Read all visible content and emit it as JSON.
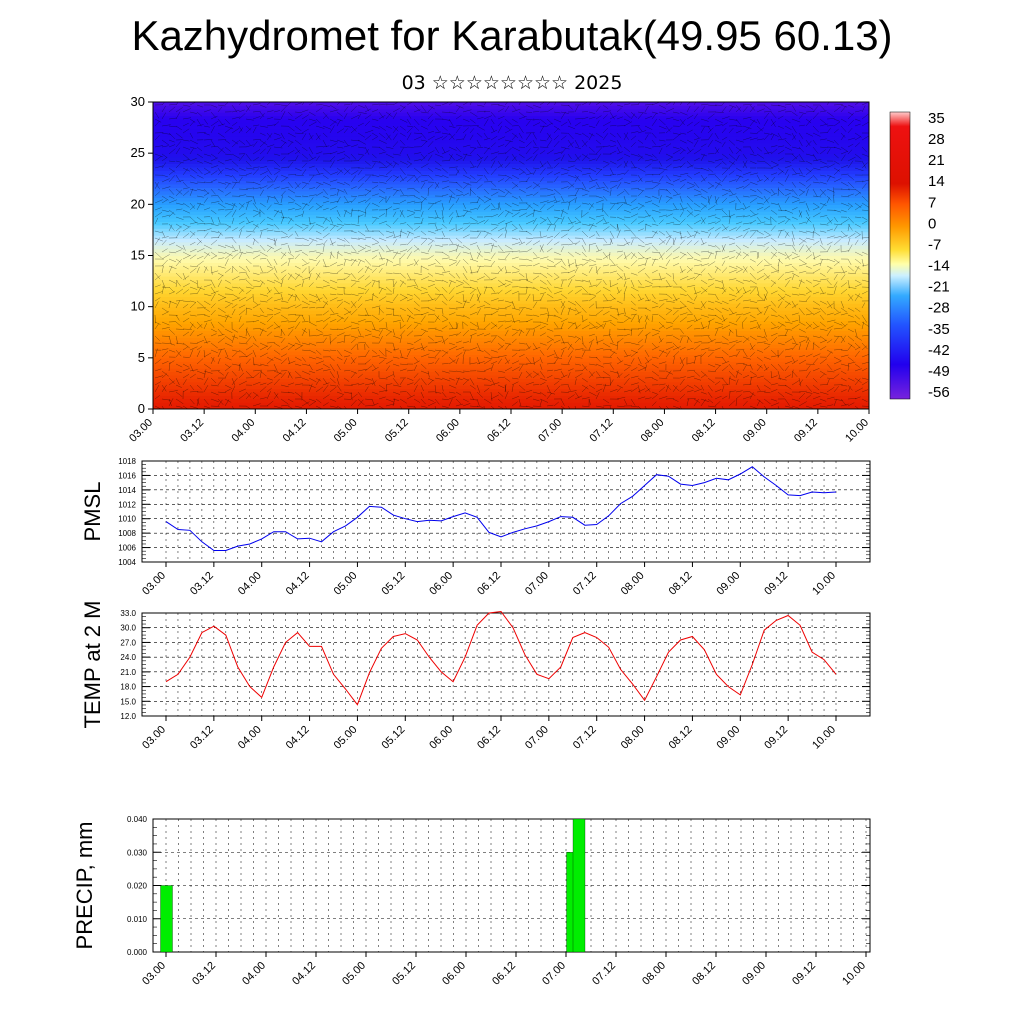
{
  "title": "Kazhydromet for Karabutak(49.95 60.13)",
  "subtitle": "03 ☆☆☆☆☆☆☆☆ 2025",
  "chart_data": [
    {
      "type": "heatmap",
      "ylim": [
        0,
        30
      ],
      "yticks": [
        "0",
        "5",
        "10",
        "15",
        "20",
        "25",
        "30"
      ],
      "xticks": [
        "03.00",
        "03.12",
        "04.00",
        "04.12",
        "05.00",
        "05.12",
        "06.00",
        "06.12",
        "07.00",
        "07.12",
        "08.00",
        "08.12",
        "09.00",
        "09.12",
        "10.00"
      ],
      "colorbar": {
        "labels": [
          "35",
          "28",
          "21",
          "14",
          "7",
          "0",
          "-7",
          "-14",
          "-21",
          "-28",
          "-35",
          "-42",
          "-49",
          "-56"
        ]
      },
      "profile": {
        "levels": [
          0,
          5,
          10,
          15,
          20,
          25,
          30
        ],
        "values": [
          22,
          14,
          4,
          -8,
          -28,
          -52,
          -58
        ]
      }
    },
    {
      "type": "line",
      "ylabel": "PMSL",
      "ylim": [
        1004,
        1018
      ],
      "yticks": [
        "1004",
        "1006",
        "1008",
        "1010",
        "1012",
        "1014",
        "1016",
        "1018"
      ],
      "xticks": [
        "03.00",
        "03.12",
        "04.00",
        "04.12",
        "05.00",
        "05.12",
        "06.00",
        "06.12",
        "07.00",
        "07.12",
        "08.00",
        "08.12",
        "09.00",
        "09.12",
        "10.00"
      ],
      "color": "#0000ee",
      "series": [
        {
          "values": [
            1009.6,
            1008.5,
            1008.4,
            1006.8,
            1005.6,
            1005.6,
            1006.2,
            1006.5,
            1007.2,
            1008.2,
            1008.2,
            1007.2,
            1007.3,
            1006.8,
            1008.2,
            1009.0,
            1010.2,
            1011.7,
            1011.6,
            1010.5,
            1010.0,
            1009.6,
            1009.8,
            1009.7,
            1010.3,
            1010.8,
            1010.2,
            1008.1,
            1007.5,
            1008.1,
            1008.6,
            1009.0,
            1009.6,
            1010.3,
            1010.2,
            1009.1,
            1009.2,
            1010.4,
            1012.1,
            1013.1,
            1014.6,
            1016.1,
            1015.9,
            1014.8,
            1014.6,
            1015.0,
            1015.6,
            1015.4,
            1016.2,
            1017.2,
            1015.8,
            1014.6,
            1013.3,
            1013.2,
            1013.7,
            1013.6,
            1013.7
          ]
        }
      ]
    },
    {
      "type": "line",
      "ylabel": "TEMP at 2 M",
      "ylim": [
        12,
        33
      ],
      "yticks": [
        "12.0",
        "15.0",
        "18.0",
        "21.0",
        "24.0",
        "27.0",
        "30.0",
        "33.0"
      ],
      "xticks": [
        "03.00",
        "03.12",
        "04.00",
        "04.12",
        "05.00",
        "05.12",
        "06.00",
        "06.12",
        "07.00",
        "07.12",
        "08.00",
        "08.12",
        "09.00",
        "09.12",
        "10.00"
      ],
      "color": "#ee0000",
      "series": [
        {
          "values": [
            19.0,
            20.5,
            24.0,
            29.0,
            30.3,
            28.5,
            22.0,
            18.0,
            15.8,
            22.0,
            27.0,
            29.0,
            26.2,
            26.2,
            20.5,
            17.5,
            14.3,
            20.8,
            25.8,
            28.2,
            28.8,
            27.5,
            24.0,
            21.0,
            19.0,
            24.0,
            30.5,
            33.0,
            33.3,
            30.0,
            24.5,
            20.5,
            19.6,
            22.0,
            28.0,
            29.0,
            28.0,
            26.0,
            21.5,
            18.5,
            15.2,
            20.0,
            25.0,
            27.5,
            28.2,
            25.5,
            20.5,
            18.0,
            16.3,
            22.5,
            29.5,
            31.5,
            32.5,
            30.5,
            25.0,
            23.5,
            20.5
          ]
        }
      ]
    },
    {
      "type": "bar",
      "ylabel": "PRECIP, mm",
      "ylim": [
        0,
        0.04
      ],
      "yticks": [
        "0.000",
        "0.010",
        "0.020",
        "0.030",
        "0.040"
      ],
      "xticks": [
        "03.00",
        "03.12",
        "04.00",
        "04.12",
        "05.00",
        "05.12",
        "06.00",
        "06.12",
        "07.00",
        "07.12",
        "08.00",
        "08.12",
        "09.00",
        "09.12",
        "10.00"
      ],
      "color": "#00ee00",
      "bars": [
        {
          "x": 3.0,
          "value": 0.02
        },
        {
          "x": 7.06,
          "value": 0.03
        },
        {
          "x": 7.125,
          "value": 0.04
        }
      ]
    }
  ]
}
